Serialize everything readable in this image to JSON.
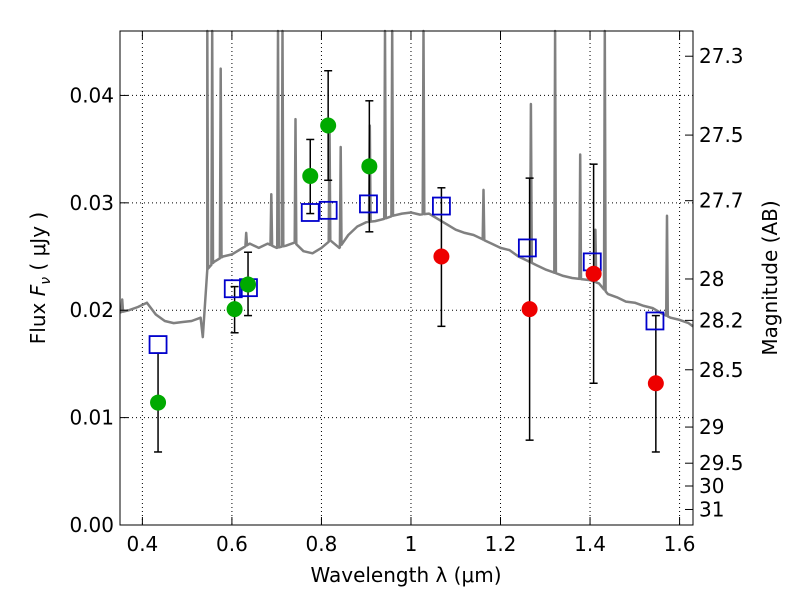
{
  "chart_data": {
    "type": "scatter",
    "title": "",
    "xlabel": "Wavelength  λ (μm)",
    "ylabel": "Flux  F_ν  ( μJy )",
    "ylabel_parts": {
      "prefix": "Flux  ",
      "symbol": "F",
      "subscript": "ν",
      "units": "  ( μJy )"
    },
    "y2label": "Magnitude (AB)",
    "xlim": [
      0.35,
      1.63
    ],
    "ylim": [
      0.0,
      0.046
    ],
    "grid": true,
    "legend": "none",
    "x_ticks": [
      {
        "value": 0.4,
        "label": "0.4"
      },
      {
        "value": 0.6,
        "label": "0.6"
      },
      {
        "value": 0.8,
        "label": "0.8"
      },
      {
        "value": 1.0,
        "label": "1"
      },
      {
        "value": 1.2,
        "label": "1.2"
      },
      {
        "value": 1.4,
        "label": "1.4"
      },
      {
        "value": 1.6,
        "label": "1.6"
      }
    ],
    "y_ticks": [
      {
        "value": 0.0,
        "label": "0.00"
      },
      {
        "value": 0.01,
        "label": "0.01"
      },
      {
        "value": 0.02,
        "label": "0.02"
      },
      {
        "value": 0.03,
        "label": "0.03"
      },
      {
        "value": 0.04,
        "label": "0.04"
      }
    ],
    "y2_ticks": [
      {
        "value": 27.3,
        "label": "27.3"
      },
      {
        "value": 27.5,
        "label": "27.5"
      },
      {
        "value": 27.7,
        "label": "27.7"
      },
      {
        "value": 28,
        "label": "28"
      },
      {
        "value": 28.2,
        "label": "28.2"
      },
      {
        "value": 28.5,
        "label": "28.5"
      },
      {
        "value": 29,
        "label": "29"
      },
      {
        "value": 29.5,
        "label": "29.5"
      },
      {
        "value": 30,
        "label": "30"
      },
      {
        "value": 31,
        "label": "31"
      }
    ],
    "colors": {
      "sed": "#808080",
      "model_box": "#0000cc",
      "detected": "#00aa00",
      "upper": "#ee0000",
      "errorbar": "#000000"
    },
    "model_sed": {
      "continuum": [
        [
          0.35,
          0.0198
        ],
        [
          0.37,
          0.02
        ],
        [
          0.39,
          0.0203
        ],
        [
          0.41,
          0.0207
        ],
        [
          0.43,
          0.0196
        ],
        [
          0.45,
          0.019
        ],
        [
          0.47,
          0.0188
        ],
        [
          0.49,
          0.0189
        ],
        [
          0.51,
          0.019
        ],
        [
          0.53,
          0.0193
        ],
        [
          0.535,
          0.0175
        ],
        [
          0.545,
          0.0238
        ],
        [
          0.56,
          0.0245
        ],
        [
          0.58,
          0.025
        ],
        [
          0.6,
          0.0252
        ],
        [
          0.62,
          0.0257
        ],
        [
          0.64,
          0.0262
        ],
        [
          0.66,
          0.0258
        ],
        [
          0.68,
          0.0262
        ],
        [
          0.7,
          0.0258
        ],
        [
          0.72,
          0.026
        ],
        [
          0.74,
          0.0263
        ],
        [
          0.76,
          0.0255
        ],
        [
          0.78,
          0.0253
        ],
        [
          0.8,
          0.0258
        ],
        [
          0.82,
          0.0265
        ],
        [
          0.84,
          0.0258
        ],
        [
          0.86,
          0.027
        ],
        [
          0.88,
          0.0278
        ],
        [
          0.9,
          0.0282
        ],
        [
          0.92,
          0.0283
        ],
        [
          0.94,
          0.0285
        ],
        [
          0.96,
          0.0288
        ],
        [
          0.98,
          0.029
        ],
        [
          1.0,
          0.0291
        ],
        [
          1.02,
          0.0289
        ],
        [
          1.04,
          0.029
        ],
        [
          1.06,
          0.0285
        ],
        [
          1.08,
          0.028
        ],
        [
          1.1,
          0.0275
        ],
        [
          1.12,
          0.0272
        ],
        [
          1.14,
          0.027
        ],
        [
          1.16,
          0.0266
        ],
        [
          1.18,
          0.0262
        ],
        [
          1.2,
          0.0258
        ],
        [
          1.22,
          0.0256
        ],
        [
          1.24,
          0.025
        ],
        [
          1.26,
          0.0246
        ],
        [
          1.28,
          0.0242
        ],
        [
          1.3,
          0.0238
        ],
        [
          1.32,
          0.0235
        ],
        [
          1.34,
          0.0232
        ],
        [
          1.36,
          0.023
        ],
        [
          1.38,
          0.0229
        ],
        [
          1.4,
          0.0228
        ],
        [
          1.42,
          0.0225
        ],
        [
          1.44,
          0.0215
        ],
        [
          1.46,
          0.0212
        ],
        [
          1.48,
          0.0208
        ],
        [
          1.5,
          0.0207
        ],
        [
          1.52,
          0.0204
        ],
        [
          1.54,
          0.0202
        ],
        [
          1.56,
          0.0197
        ],
        [
          1.58,
          0.0193
        ],
        [
          1.6,
          0.0191
        ],
        [
          1.62,
          0.0188
        ],
        [
          1.63,
          0.0185
        ]
      ],
      "emission_lines": [
        {
          "x": 0.355,
          "peak": 0.021
        },
        {
          "x": 0.545,
          "peak": 0.05
        },
        {
          "x": 0.556,
          "peak": 0.05
        },
        {
          "x": 0.575,
          "peak": 0.0425
        },
        {
          "x": 0.632,
          "peak": 0.0272
        },
        {
          "x": 0.688,
          "peak": 0.0308
        },
        {
          "x": 0.703,
          "peak": 0.05
        },
        {
          "x": 0.713,
          "peak": 0.05
        },
        {
          "x": 0.742,
          "peak": 0.0378
        },
        {
          "x": 0.818,
          "peak": 0.0372
        },
        {
          "x": 0.843,
          "peak": 0.0352
        },
        {
          "x": 0.908,
          "peak": 0.0372
        },
        {
          "x": 0.942,
          "peak": 0.05
        },
        {
          "x": 0.958,
          "peak": 0.05
        },
        {
          "x": 1.028,
          "peak": 0.05
        },
        {
          "x": 1.162,
          "peak": 0.0312
        },
        {
          "x": 1.268,
          "peak": 0.0392
        },
        {
          "x": 1.322,
          "peak": 0.05
        },
        {
          "x": 1.378,
          "peak": 0.0345
        },
        {
          "x": 1.412,
          "peak": 0.0275
        },
        {
          "x": 1.433,
          "peak": 0.05
        },
        {
          "x": 1.572,
          "peak": 0.0288
        }
      ]
    },
    "model_photometry": [
      {
        "x": 0.435,
        "y": 0.0168
      },
      {
        "x": 0.603,
        "y": 0.022
      },
      {
        "x": 0.637,
        "y": 0.0221
      },
      {
        "x": 0.775,
        "y": 0.0291
      },
      {
        "x": 0.815,
        "y": 0.0293
      },
      {
        "x": 0.905,
        "y": 0.0299
      },
      {
        "x": 1.068,
        "y": 0.0297
      },
      {
        "x": 1.26,
        "y": 0.0258
      },
      {
        "x": 1.405,
        "y": 0.0245
      },
      {
        "x": 1.545,
        "y": 0.019
      }
    ],
    "observed_detected": [
      {
        "x": 0.435,
        "y": 0.0114,
        "err_low": 0.0068,
        "err_high": 0.016
      },
      {
        "x": 0.606,
        "y": 0.0201,
        "err_low": 0.0179,
        "err_high": 0.0222
      },
      {
        "x": 0.636,
        "y": 0.0224,
        "err_low": 0.0195,
        "err_high": 0.0254
      },
      {
        "x": 0.775,
        "y": 0.0325,
        "err_low": 0.029,
        "err_high": 0.0359
      },
      {
        "x": 0.815,
        "y": 0.0372,
        "err_low": 0.0321,
        "err_high": 0.0423
      },
      {
        "x": 0.907,
        "y": 0.0334,
        "err_low": 0.0273,
        "err_high": 0.0395
      }
    ],
    "observed_low_sn": [
      {
        "x": 1.068,
        "y": 0.025,
        "err_low": 0.0185,
        "err_high": 0.0314
      },
      {
        "x": 1.265,
        "y": 0.0201,
        "err_low": 0.0079,
        "err_high": 0.0323
      },
      {
        "x": 1.408,
        "y": 0.0234,
        "err_low": 0.0132,
        "err_high": 0.0336
      },
      {
        "x": 1.547,
        "y": 0.0132,
        "err_low": 0.0068,
        "err_high": 0.0195
      }
    ]
  }
}
